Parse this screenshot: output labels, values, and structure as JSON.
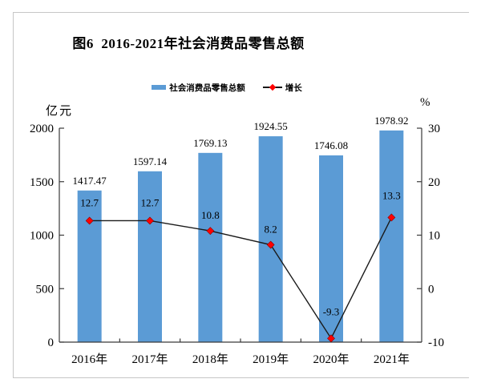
{
  "window": {
    "background": "#ffffff",
    "frame_border_color": "#c6c6c6"
  },
  "title": "图6  2016-2021年社会消费品零售总额",
  "legend": {
    "items": [
      {
        "label": "社会消费品零售总额",
        "swatch": "bar",
        "color": "#5B9BD5"
      },
      {
        "label": "增长",
        "swatch": "line-diamond",
        "line_color": "#1a1a1a",
        "marker_color": "#ff0000"
      }
    ]
  },
  "left_axis": {
    "unit": "亿元",
    "ticks": [
      0,
      500,
      1000,
      1500,
      2000
    ]
  },
  "right_axis": {
    "unit": "%",
    "ticks": [
      -10,
      0,
      10,
      20,
      30
    ]
  },
  "chart_data": {
    "type": "bar+line",
    "title": "图6  2016-2021年社会消费品零售总额",
    "categories": [
      "2016年",
      "2017年",
      "2018年",
      "2019年",
      "2020年",
      "2021年"
    ],
    "series": [
      {
        "name": "社会消费品零售总额",
        "type": "bar",
        "axis": "left",
        "color": "#5B9BD5",
        "values": [
          1417.47,
          1597.14,
          1769.13,
          1924.55,
          1746.08,
          1978.92
        ],
        "labels": [
          "1417.47",
          "1597.14",
          "1769.13",
          "1924.55",
          "1746.08",
          "1978.92"
        ]
      },
      {
        "name": "增长",
        "type": "line",
        "axis": "right",
        "color": "#1a1a1a",
        "marker": "diamond",
        "marker_color": "#ff0000",
        "marker_edge_color": "#8b0000",
        "values": [
          12.7,
          12.7,
          10.8,
          8.2,
          -9.3,
          13.3
        ],
        "labels": [
          "12.7",
          "12.7",
          "10.8",
          "8.2",
          "-9.3",
          "13.3"
        ]
      }
    ],
    "ylabel_left": "亿元",
    "ylabel_right": "%",
    "ylim_left": [
      0,
      2000
    ],
    "ylim_right": [
      -10,
      30
    ],
    "grid": false,
    "legend_position": "top",
    "axis_color": "#3a3a3a"
  }
}
